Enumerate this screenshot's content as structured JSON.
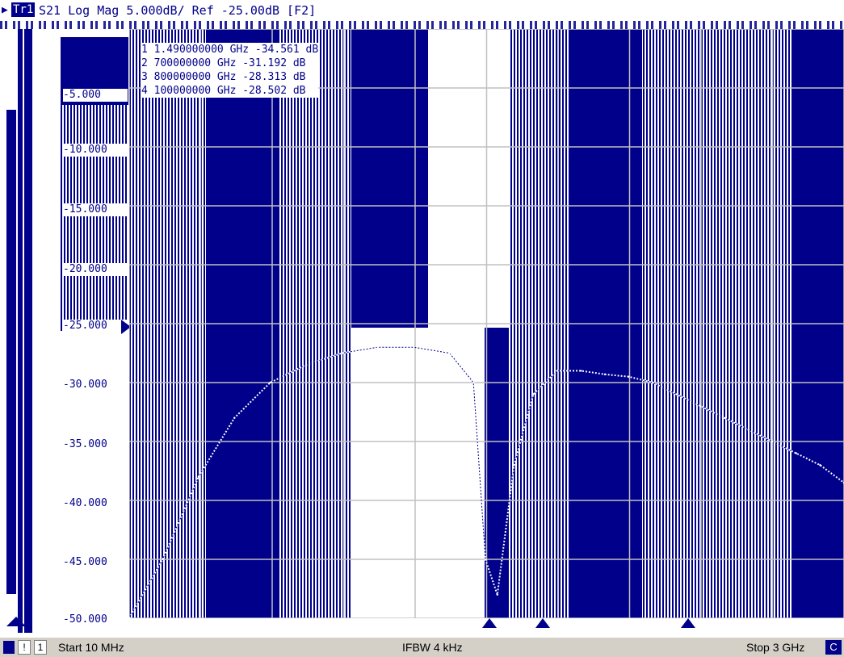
{
  "header": {
    "trace_badge": "Tr1",
    "trace_title": "S21 Log Mag 5.000dB/ Ref -25.00dB [F2]"
  },
  "y_axis_labels": [
    "-5.000",
    "-10.000",
    "-15.000",
    "-20.000",
    "-25.000",
    "-30.000",
    "-35.000",
    "-40.000",
    "-45.000",
    "-50.000"
  ],
  "markers": [
    {
      "label": "1",
      "text": "1.490000000 GHz  -34.561 dB"
    },
    {
      "label": "2",
      "text": "  700000000 GHz  -31.192 dB"
    },
    {
      "label": "3",
      "text": "  800000000 GHz  -28.313 dB"
    },
    {
      "label": "4",
      "text": "  100000000 GHz  -28.502 dB"
    }
  ],
  "status": {
    "channel": "1",
    "exclamation": "!",
    "start": "Start 10 MHz",
    "ifbw": "IFBW 4 kHz",
    "stop": "Stop 3 GHz",
    "cont": "C"
  },
  "colors": {
    "trace": "#00008b",
    "background": "#ffffff",
    "status_bar": "#d4d0c8"
  },
  "chart_data": {
    "type": "line",
    "title": "S21 Log Mag 5.000dB/ Ref -25.00dB [F2]",
    "x_start": "10 MHz",
    "x_stop": "3 GHz",
    "ylim": [
      -50,
      0
    ],
    "y_ref": -25,
    "y_per_div": 5,
    "grid": true,
    "series": [
      {
        "x": [
          0.01,
          0.15,
          0.3,
          0.45,
          0.6,
          0.75,
          0.9,
          1.05,
          1.2,
          1.35,
          1.45,
          1.5,
          1.55,
          1.62,
          1.7,
          1.8,
          1.9,
          2.0,
          2.1,
          2.2,
          2.3,
          2.4,
          2.5,
          2.6,
          2.7,
          2.8,
          2.9,
          3.0
        ],
        "y": [
          -50,
          -45,
          -38,
          -33,
          -30,
          -28.5,
          -27.5,
          -27,
          -27,
          -27.5,
          -30,
          -45,
          -48,
          -37,
          -31,
          -29,
          -29,
          -29.3,
          -29.5,
          -30,
          -31,
          -32,
          -33,
          -34,
          -35,
          -36,
          -37,
          -38.5
        ]
      }
    ]
  }
}
